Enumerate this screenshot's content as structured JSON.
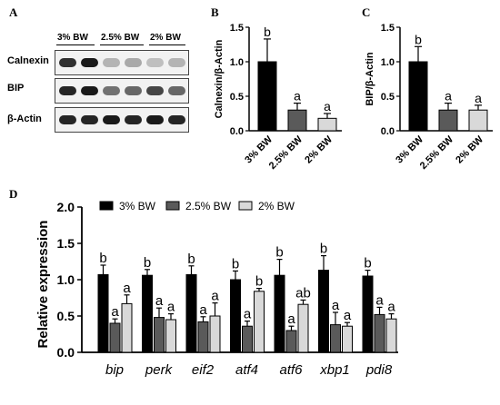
{
  "panel_labels": {
    "a": "A",
    "b": "B",
    "c": "C",
    "d": "D"
  },
  "blot": {
    "groups": [
      "3% BW",
      "2.5% BW",
      "2% BW"
    ],
    "rows": [
      "Calnexin",
      "BIP",
      "β-Actin"
    ],
    "intensity": [
      [
        0.85,
        0.95,
        0.25,
        0.3,
        0.2,
        0.25
      ],
      [
        0.9,
        0.95,
        0.55,
        0.6,
        0.75,
        0.6
      ],
      [
        0.9,
        0.9,
        0.95,
        0.9,
        0.95,
        0.9
      ]
    ]
  },
  "chart_data": [
    {
      "type": "bar",
      "ylabel": "Calnexin/β-Actin",
      "categories": [
        "3% BW",
        "2.5% BW",
        "2% BW"
      ],
      "values": [
        1.0,
        0.3,
        0.18
      ],
      "errors": [
        0.33,
        0.1,
        0.07
      ],
      "letters": [
        "b",
        "a",
        "a"
      ],
      "colors": [
        "#000000",
        "#5a5a5a",
        "#d9d9d9"
      ],
      "ylim": [
        0,
        1.5
      ],
      "yticks": [
        "0.0",
        "0.5",
        "1.0",
        "1.5"
      ]
    },
    {
      "type": "bar",
      "ylabel": "BIP/β-Actin",
      "categories": [
        "3% BW",
        "2.5% BW",
        "2% BW"
      ],
      "values": [
        1.0,
        0.3,
        0.3
      ],
      "errors": [
        0.22,
        0.1,
        0.07
      ],
      "letters": [
        "b",
        "a",
        "a"
      ],
      "colors": [
        "#000000",
        "#5a5a5a",
        "#d9d9d9"
      ],
      "ylim": [
        0,
        1.5
      ],
      "yticks": [
        "0.0",
        "0.5",
        "1.0",
        "1.5"
      ]
    },
    {
      "type": "bar",
      "ylabel": "Relative expression",
      "categories": [
        "bip",
        "perk",
        "eif2",
        "atf4",
        "atf6",
        "xbp1",
        "pdi8"
      ],
      "series": [
        {
          "name": "3% BW",
          "color": "#000000",
          "values": [
            1.07,
            1.06,
            1.07,
            1.0,
            1.06,
            1.13,
            1.05
          ],
          "errors": [
            0.13,
            0.08,
            0.12,
            0.12,
            0.22,
            0.2,
            0.08
          ],
          "letters": [
            "b",
            "b",
            "b",
            "b",
            "b",
            "b",
            "b"
          ]
        },
        {
          "name": "2.5% BW",
          "color": "#5a5a5a",
          "values": [
            0.4,
            0.48,
            0.42,
            0.36,
            0.3,
            0.38,
            0.52
          ],
          "errors": [
            0.06,
            0.13,
            0.07,
            0.07,
            0.06,
            0.17,
            0.1
          ],
          "letters": [
            "a",
            "a",
            "a",
            "a",
            "a",
            "a",
            "a"
          ]
        },
        {
          "name": "2% BW",
          "color": "#d9d9d9",
          "values": [
            0.67,
            0.45,
            0.5,
            0.84,
            0.66,
            0.36,
            0.46
          ],
          "errors": [
            0.12,
            0.08,
            0.18,
            0.04,
            0.06,
            0.05,
            0.07
          ],
          "letters": [
            "a",
            "a",
            "a",
            "b",
            "ab",
            "a",
            "a"
          ]
        }
      ],
      "ylim": [
        0,
        2.0
      ],
      "yticks": [
        "0.0",
        "0.5",
        "1.0",
        "1.5",
        "2.0"
      ],
      "legend": "top"
    }
  ]
}
